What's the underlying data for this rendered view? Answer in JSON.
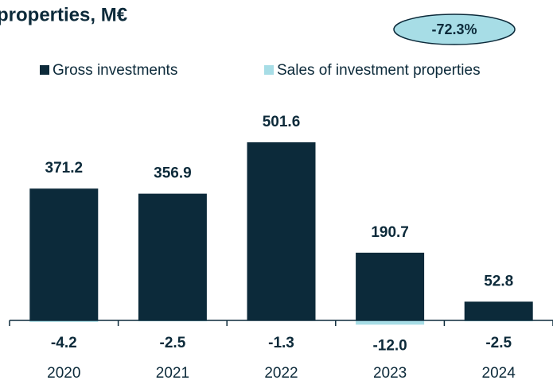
{
  "chart_data": {
    "type": "bar",
    "title": "properties, M€",
    "annotation": "-72.3%",
    "categories": [
      "2020",
      "2021",
      "2022",
      "2023",
      "2024"
    ],
    "series": [
      {
        "name": "Gross investments",
        "color": "#0c2a3a",
        "values": [
          371.2,
          356.9,
          501.6,
          190.7,
          52.8
        ]
      },
      {
        "name": "Sales of investment properties",
        "color": "#a7dde6",
        "values": [
          -4.2,
          -2.5,
          -1.3,
          -12.0,
          -2.5
        ],
        "value_labels": [
          "-4.2",
          "-2.5",
          "-1.3",
          "-12.0",
          "-2.5"
        ]
      }
    ],
    "legend": "top"
  }
}
